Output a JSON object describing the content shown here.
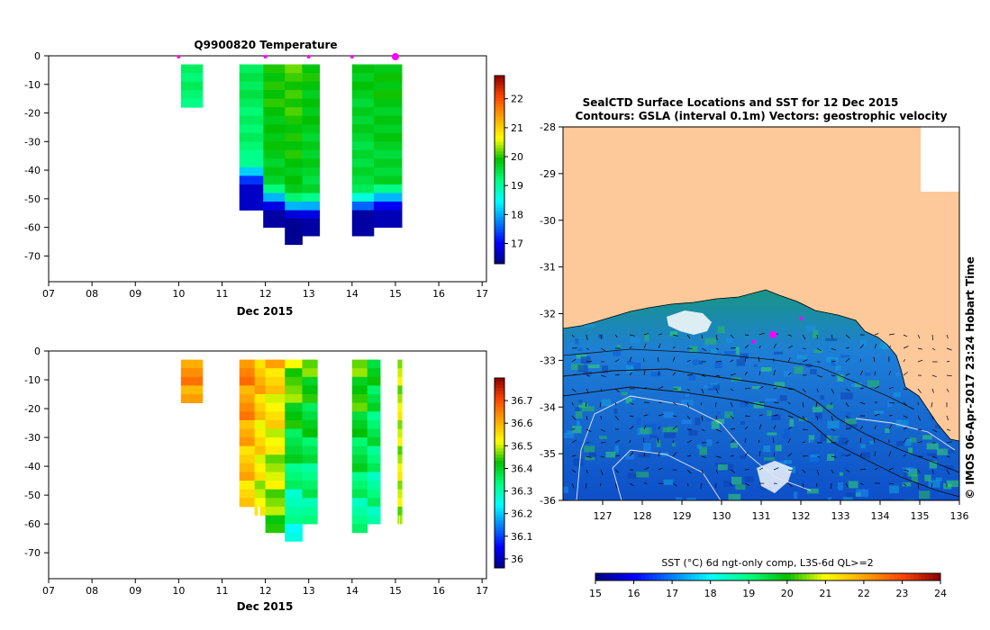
{
  "chart_data": [
    {
      "type": "heatmap",
      "title": "Q9900820  Temperature",
      "xlabel": "Dec 2015",
      "x_ticks": [
        "07",
        "08",
        "09",
        "10",
        "11",
        "12",
        "13",
        "14",
        "15",
        "16",
        "17"
      ],
      "x_range": [
        7,
        17.1
      ],
      "y_ticks": [
        "0",
        "-10",
        "-20",
        "-30",
        "-40",
        "-50",
        "-60",
        "-70"
      ],
      "y_range": [
        0,
        -79
      ],
      "profile_marker_days": [
        10,
        12,
        13,
        14,
        15
      ],
      "colorbar": {
        "min": 16.3,
        "max": 22.8,
        "tick_labels": [
          "17",
          "18",
          "19",
          "20",
          "21",
          "22"
        ],
        "tick_values": [
          17,
          18,
          19,
          20,
          21,
          22
        ],
        "colors": [
          "#000080",
          "#0000ff",
          "#0080ff",
          "#00ffff",
          "#00ff80",
          "#00c000",
          "#ffff00",
          "#ffa500",
          "#ff4500",
          "#8b0000"
        ]
      },
      "profiles": [
        {
          "x0": 10.05,
          "x1": 10.55,
          "depth": 17,
          "surface": 19.2,
          "deep": 19.2,
          "thermocline": 99
        },
        {
          "x0": 11.4,
          "x1": 11.95,
          "depth": 53,
          "surface": 19.4,
          "deep": 17.0,
          "thermocline": 36
        },
        {
          "x0": 11.95,
          "x1": 12.45,
          "depth": 60,
          "surface": 19.9,
          "deep": 16.8,
          "thermocline": 44
        },
        {
          "x0": 12.45,
          "x1": 12.85,
          "depth": 65,
          "surface": 20.0,
          "deep": 16.7,
          "thermocline": 47
        },
        {
          "x0": 12.85,
          "x1": 13.25,
          "depth": 63,
          "surface": 19.8,
          "deep": 16.8,
          "thermocline": 47
        },
        {
          "x0": 14.0,
          "x1": 14.5,
          "depth": 62,
          "surface": 19.7,
          "deep": 16.8,
          "thermocline": 46
        },
        {
          "x0": 14.5,
          "x1": 15.15,
          "depth": 58,
          "surface": 19.8,
          "deep": 16.9,
          "thermocline": 44
        }
      ]
    },
    {
      "type": "heatmap",
      "title": "",
      "xlabel": "Dec 2015",
      "x_ticks": [
        "07",
        "08",
        "09",
        "10",
        "11",
        "12",
        "13",
        "14",
        "15",
        "16",
        "17"
      ],
      "x_range": [
        7,
        17.1
      ],
      "y_ticks": [
        "0",
        "-10",
        "-20",
        "-30",
        "-40",
        "-50",
        "-60",
        "-70"
      ],
      "y_range": [
        0,
        -79
      ],
      "colorbar": {
        "min": 35.96,
        "max": 36.8,
        "tick_labels": [
          "36",
          "36.1",
          "36.2",
          "36.3",
          "36.4",
          "36.5",
          "36.6",
          "36.7"
        ],
        "tick_values": [
          36,
          36.1,
          36.2,
          36.3,
          36.4,
          36.5,
          36.6,
          36.7
        ],
        "colors": [
          "#000080",
          "#0000ff",
          "#0080ff",
          "#00ffff",
          "#00ff80",
          "#00c000",
          "#ffff00",
          "#ffa500",
          "#ff4500",
          "#8b0000"
        ]
      },
      "profiles": [
        {
          "x0": 10.05,
          "x1": 10.55,
          "depth": 17,
          "surface": 36.62,
          "deep": 36.62
        },
        {
          "x0": 11.4,
          "x1": 11.75,
          "depth": 53,
          "surface": 36.66,
          "deep": 36.55
        },
        {
          "x0": 11.75,
          "x1": 12.0,
          "depth": 55,
          "surface": 36.6,
          "deep": 36.5
        },
        {
          "x0": 12.0,
          "x1": 12.45,
          "depth": 62,
          "surface": 36.58,
          "deep": 36.45
        },
        {
          "x0": 12.45,
          "x1": 12.85,
          "depth": 66,
          "surface": 36.5,
          "deep": 36.25
        },
        {
          "x0": 12.85,
          "x1": 13.2,
          "depth": 60,
          "surface": 36.45,
          "deep": 36.3
        },
        {
          "x0": 14.0,
          "x1": 14.35,
          "depth": 62,
          "surface": 36.47,
          "deep": 36.3
        },
        {
          "x0": 14.35,
          "x1": 14.65,
          "depth": 60,
          "surface": 36.4,
          "deep": 36.3
        },
        {
          "x0": 15.05,
          "x1": 15.15,
          "depth": 58,
          "surface": 36.5,
          "deep": 36.5
        }
      ]
    },
    {
      "type": "heatmap",
      "title": "SealCTD Surface Locations and SST for 12 Dec 2015",
      "subtitle": "Contours: GSLA (interval 0.1m) Vectors: geostrophic velocity",
      "x_ticks": [
        "127",
        "128",
        "129",
        "130",
        "131",
        "132",
        "133",
        "134",
        "135",
        "136"
      ],
      "x_range": [
        126,
        136
      ],
      "y_ticks": [
        "-28",
        "-29",
        "-30",
        "-31",
        "-32",
        "-33",
        "-34",
        "-35",
        "-36"
      ],
      "y_range": [
        -28,
        -36
      ],
      "colorbar": {
        "label": "SST (°C) 6d ngt-only comp, L3S-6d QL>=2",
        "min": 15,
        "max": 24,
        "tick_labels": [
          "15",
          "16",
          "17",
          "18",
          "19",
          "20",
          "21",
          "22",
          "23",
          "24"
        ],
        "tick_values": [
          15,
          16,
          17,
          18,
          19,
          20,
          21,
          22,
          23,
          24
        ],
        "colors": [
          "#000080",
          "#0000ff",
          "#0080ff",
          "#00ffff",
          "#00ff80",
          "#00c000",
          "#ffff00",
          "#ffa500",
          "#ff4500",
          "#8b0000"
        ]
      },
      "seal_positions": [
        {
          "lon": 131.3,
          "lat": -32.45,
          "label": "surface"
        },
        {
          "lon": 130.8,
          "lat": -32.6,
          "label": "surface"
        },
        {
          "lon": 132.0,
          "lat": -32.1,
          "label": "surface"
        }
      ],
      "land_color": "#fdc99a",
      "side_note": "© IMOS 06-Apr-2017 23:24 Hobart Time"
    }
  ]
}
